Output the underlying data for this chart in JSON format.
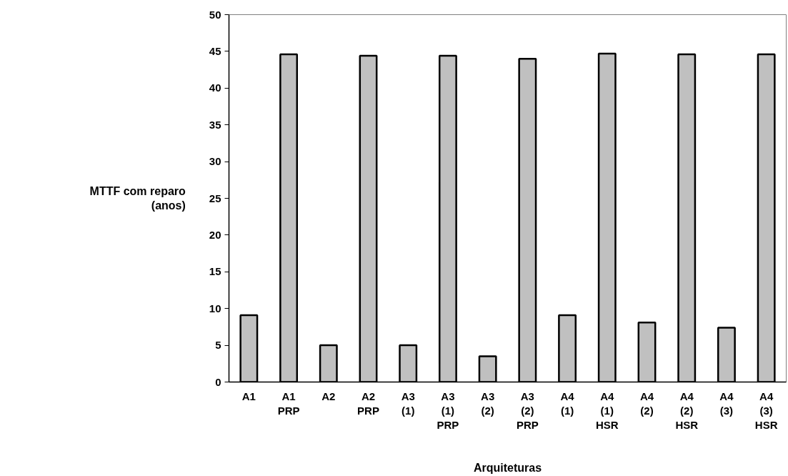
{
  "chart_data": {
    "type": "bar",
    "xlabel": "Arquiteturas",
    "ylabel": "MTTF com reparo\n(anos)",
    "categories": [
      "A1",
      "A1\nPRP",
      "A2",
      "A2\nPRP",
      "A3\n(1)",
      "A3\n(1)\nPRP",
      "A3\n(2)",
      "A3\n(2)\nPRP",
      "A4\n(1)",
      "A4\n(1)\nHSR",
      "A4\n(2)",
      "A4\n(2)\nHSR",
      "A4\n(3)",
      "A4\n(3)\nHSR"
    ],
    "values": [
      9.1,
      44.6,
      5.0,
      44.4,
      5.0,
      44.4,
      3.5,
      44.0,
      9.1,
      44.7,
      8.1,
      44.6,
      7.4,
      44.6
    ],
    "color": "#c0c0c0",
    "ylim": [
      0,
      50
    ],
    "yticks": [
      0,
      5,
      10,
      15,
      20,
      25,
      30,
      35,
      40,
      45,
      50
    ],
    "grid": false
  }
}
